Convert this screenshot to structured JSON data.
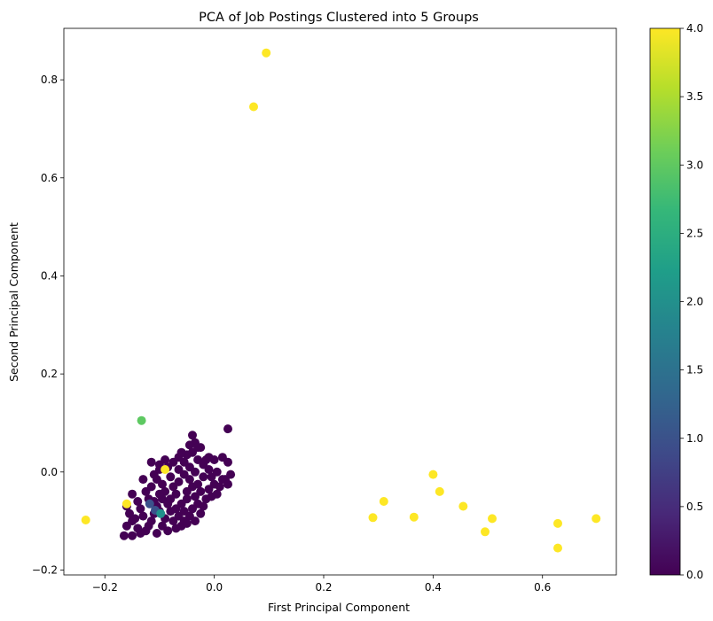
{
  "chart_data": {
    "type": "scatter",
    "title": "PCA of Job Postings Clustered into 5 Groups",
    "xlabel": "First Principal Component",
    "ylabel": "Second Principal Component",
    "xlim": [
      -0.275,
      0.735
    ],
    "ylim": [
      -0.21,
      0.905
    ],
    "xticks": [
      -0.2,
      0.0,
      0.2,
      0.4,
      0.6
    ],
    "xtick_labels": [
      "−0.2",
      "0.0",
      "0.2",
      "0.4",
      "0.6"
    ],
    "yticks": [
      -0.2,
      0.0,
      0.2,
      0.4,
      0.6,
      0.8
    ],
    "ytick_labels": [
      "−0.2",
      "0.0",
      "0.2",
      "0.4",
      "0.6",
      "0.8"
    ],
    "grid": false,
    "colormap": "viridis",
    "colorbar": {
      "range": [
        0.0,
        4.0
      ],
      "ticks": [
        0.0,
        0.5,
        1.0,
        1.5,
        2.0,
        2.5,
        3.0,
        3.5,
        4.0
      ],
      "tick_labels": [
        "0.0",
        "0.5",
        "1.0",
        "1.5",
        "2.0",
        "2.5",
        "3.0",
        "3.5",
        "4.0"
      ]
    },
    "cluster_colors": [
      "#440154",
      "#3b528b",
      "#21918c",
      "#5ec962",
      "#fde725"
    ],
    "clusters": [
      {
        "cluster": 0,
        "points": [
          [
            -0.165,
            -0.13
          ],
          [
            -0.16,
            -0.11
          ],
          [
            -0.15,
            -0.13
          ],
          [
            -0.145,
            -0.095
          ],
          [
            -0.155,
            -0.085
          ],
          [
            -0.16,
            -0.07
          ],
          [
            -0.15,
            -0.045
          ],
          [
            -0.14,
            -0.06
          ],
          [
            -0.135,
            -0.075
          ],
          [
            -0.13,
            -0.09
          ],
          [
            -0.125,
            -0.12
          ],
          [
            -0.135,
            -0.125
          ],
          [
            -0.12,
            -0.11
          ],
          [
            -0.115,
            -0.1
          ],
          [
            -0.11,
            -0.085
          ],
          [
            -0.105,
            -0.07
          ],
          [
            -0.12,
            -0.055
          ],
          [
            -0.125,
            -0.04
          ],
          [
            -0.115,
            -0.03
          ],
          [
            -0.13,
            -0.015
          ],
          [
            -0.11,
            -0.005
          ],
          [
            -0.1,
            0.005
          ],
          [
            -0.105,
            -0.015
          ],
          [
            -0.095,
            -0.025
          ],
          [
            -0.09,
            -0.04
          ],
          [
            -0.095,
            -0.055
          ],
          [
            -0.085,
            -0.065
          ],
          [
            -0.08,
            -0.08
          ],
          [
            -0.09,
            -0.095
          ],
          [
            -0.075,
            -0.1
          ],
          [
            -0.07,
            -0.115
          ],
          [
            -0.06,
            -0.11
          ],
          [
            -0.065,
            -0.09
          ],
          [
            -0.055,
            -0.08
          ],
          [
            -0.06,
            -0.065
          ],
          [
            -0.05,
            -0.055
          ],
          [
            -0.07,
            -0.045
          ],
          [
            -0.075,
            -0.03
          ],
          [
            -0.065,
            -0.02
          ],
          [
            -0.08,
            -0.01
          ],
          [
            -0.085,
            0.01
          ],
          [
            -0.075,
            0.02
          ],
          [
            -0.065,
            0.005
          ],
          [
            -0.055,
            -0.005
          ],
          [
            -0.045,
            -0.015
          ],
          [
            -0.04,
            -0.03
          ],
          [
            -0.05,
            -0.04
          ],
          [
            -0.035,
            -0.05
          ],
          [
            -0.03,
            -0.065
          ],
          [
            -0.04,
            -0.075
          ],
          [
            -0.045,
            -0.09
          ],
          [
            -0.025,
            -0.085
          ],
          [
            -0.02,
            -0.07
          ],
          [
            -0.015,
            -0.055
          ],
          [
            -0.025,
            -0.04
          ],
          [
            -0.03,
            -0.025
          ],
          [
            -0.02,
            -0.01
          ],
          [
            -0.035,
            0.0
          ],
          [
            -0.045,
            0.01
          ],
          [
            -0.055,
            0.02
          ],
          [
            -0.05,
            0.035
          ],
          [
            -0.04,
            0.04
          ],
          [
            -0.03,
            0.025
          ],
          [
            -0.02,
            0.015
          ],
          [
            -0.01,
            0.005
          ],
          [
            -0.005,
            -0.01
          ],
          [
            0.0,
            -0.025
          ],
          [
            -0.01,
            -0.035
          ],
          [
            -0.005,
            -0.05
          ],
          [
            0.005,
            -0.045
          ],
          [
            0.01,
            -0.03
          ],
          [
            0.015,
            -0.015
          ],
          [
            0.005,
            0.0
          ],
          [
            -0.015,
            0.025
          ],
          [
            -0.025,
            0.05
          ],
          [
            -0.035,
            0.06
          ],
          [
            -0.04,
            0.075
          ],
          [
            -0.03,
            0.05
          ],
          [
            -0.01,
            0.03
          ],
          [
            0.0,
            0.025
          ],
          [
            0.015,
            0.03
          ],
          [
            0.025,
            0.02
          ],
          [
            0.02,
            -0.015
          ],
          [
            0.025,
            -0.025
          ],
          [
            0.03,
            -0.005
          ],
          [
            0.025,
            0.088
          ],
          [
            -0.1,
            -0.08
          ],
          [
            -0.095,
            -0.11
          ],
          [
            -0.085,
            -0.12
          ],
          [
            -0.105,
            -0.125
          ],
          [
            -0.14,
            -0.115
          ],
          [
            -0.15,
            -0.1
          ],
          [
            -0.09,
            0.025
          ],
          [
            -0.1,
            0.015
          ],
          [
            -0.115,
            0.02
          ],
          [
            -0.065,
            0.03
          ],
          [
            -0.06,
            0.04
          ],
          [
            -0.045,
            0.055
          ],
          [
            -0.055,
            -0.1
          ],
          [
            -0.035,
            -0.1
          ],
          [
            -0.05,
            -0.105
          ],
          [
            -0.07,
            -0.075
          ],
          [
            -0.08,
            -0.055
          ],
          [
            -0.1,
            -0.045
          ],
          [
            -0.11,
            -0.06
          ]
        ]
      },
      {
        "cluster": 1,
        "points": [
          [
            -0.118,
            -0.065
          ],
          [
            -0.108,
            -0.078
          ]
        ]
      },
      {
        "cluster": 2,
        "points": [
          [
            -0.098,
            -0.085
          ]
        ]
      },
      {
        "cluster": 3,
        "points": [
          [
            -0.133,
            0.105
          ]
        ]
      },
      {
        "cluster": 4,
        "points": [
          [
            0.095,
            0.855
          ],
          [
            0.072,
            0.745
          ],
          [
            -0.235,
            -0.098
          ],
          [
            -0.16,
            -0.065
          ],
          [
            -0.09,
            0.005
          ],
          [
            0.29,
            -0.093
          ],
          [
            0.31,
            -0.06
          ],
          [
            0.365,
            -0.092
          ],
          [
            0.4,
            -0.005
          ],
          [
            0.412,
            -0.04
          ],
          [
            0.455,
            -0.07
          ],
          [
            0.495,
            -0.122
          ],
          [
            0.508,
            -0.095
          ],
          [
            0.628,
            -0.105
          ],
          [
            0.628,
            -0.155
          ],
          [
            0.698,
            -0.095
          ]
        ]
      }
    ]
  }
}
